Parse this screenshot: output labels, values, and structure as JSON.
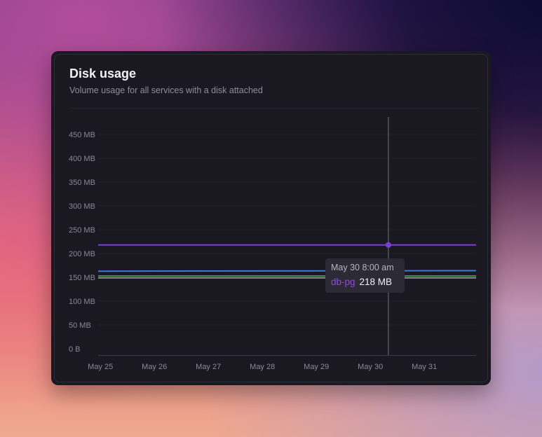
{
  "card": {
    "title": "Disk usage",
    "subtitle": "Volume usage for all services with a disk attached"
  },
  "chart_data": {
    "type": "line",
    "title": "Disk usage",
    "subtitle": "Volume usage for all services with a disk attached",
    "xlabel": "",
    "ylabel": "",
    "x_ticks": [
      "May 25",
      "May 26",
      "May 27",
      "May 28",
      "May 29",
      "May 30",
      "May 31"
    ],
    "y_ticks": [
      "0 B",
      "50 MB",
      "100 MB",
      "150 MB",
      "200 MB",
      "250 MB",
      "300 MB",
      "350 MB",
      "400 MB",
      "450 MB"
    ],
    "y_tick_values": [
      0,
      50,
      100,
      150,
      200,
      250,
      300,
      350,
      400,
      450
    ],
    "ylim": [
      0,
      450
    ],
    "x_range": [
      "May 24 11:00 pm",
      "May 31 11:00 pm"
    ],
    "grid": true,
    "series": [
      {
        "name": "db-pg",
        "color": "#7b3fd0",
        "x": [
          "May 24 11:00 pm",
          "May 31 11:00 pm"
        ],
        "y": [
          218,
          218
        ]
      },
      {
        "color": "#3f78dc",
        "x": [
          "May 24 11:00 pm",
          "May 31 11:00 pm"
        ],
        "y": [
          163,
          164
        ]
      },
      {
        "color": "#3d8a4a",
        "x": [
          "May 24 11:00 pm",
          "May 31 11:00 pm"
        ],
        "y": [
          153,
          153
        ]
      },
      {
        "color": "#8d8d8f",
        "x": [
          "May 24 11:00 pm",
          "May 31 11:00 pm"
        ],
        "y": [
          149,
          149
        ]
      }
    ],
    "hover": {
      "x": "May 30 8:00 am",
      "series": "db-pg",
      "value": 218
    }
  },
  "tooltip": {
    "date": "May 30 8:00 am",
    "series_name": "db-pg",
    "value": "218 MB"
  }
}
